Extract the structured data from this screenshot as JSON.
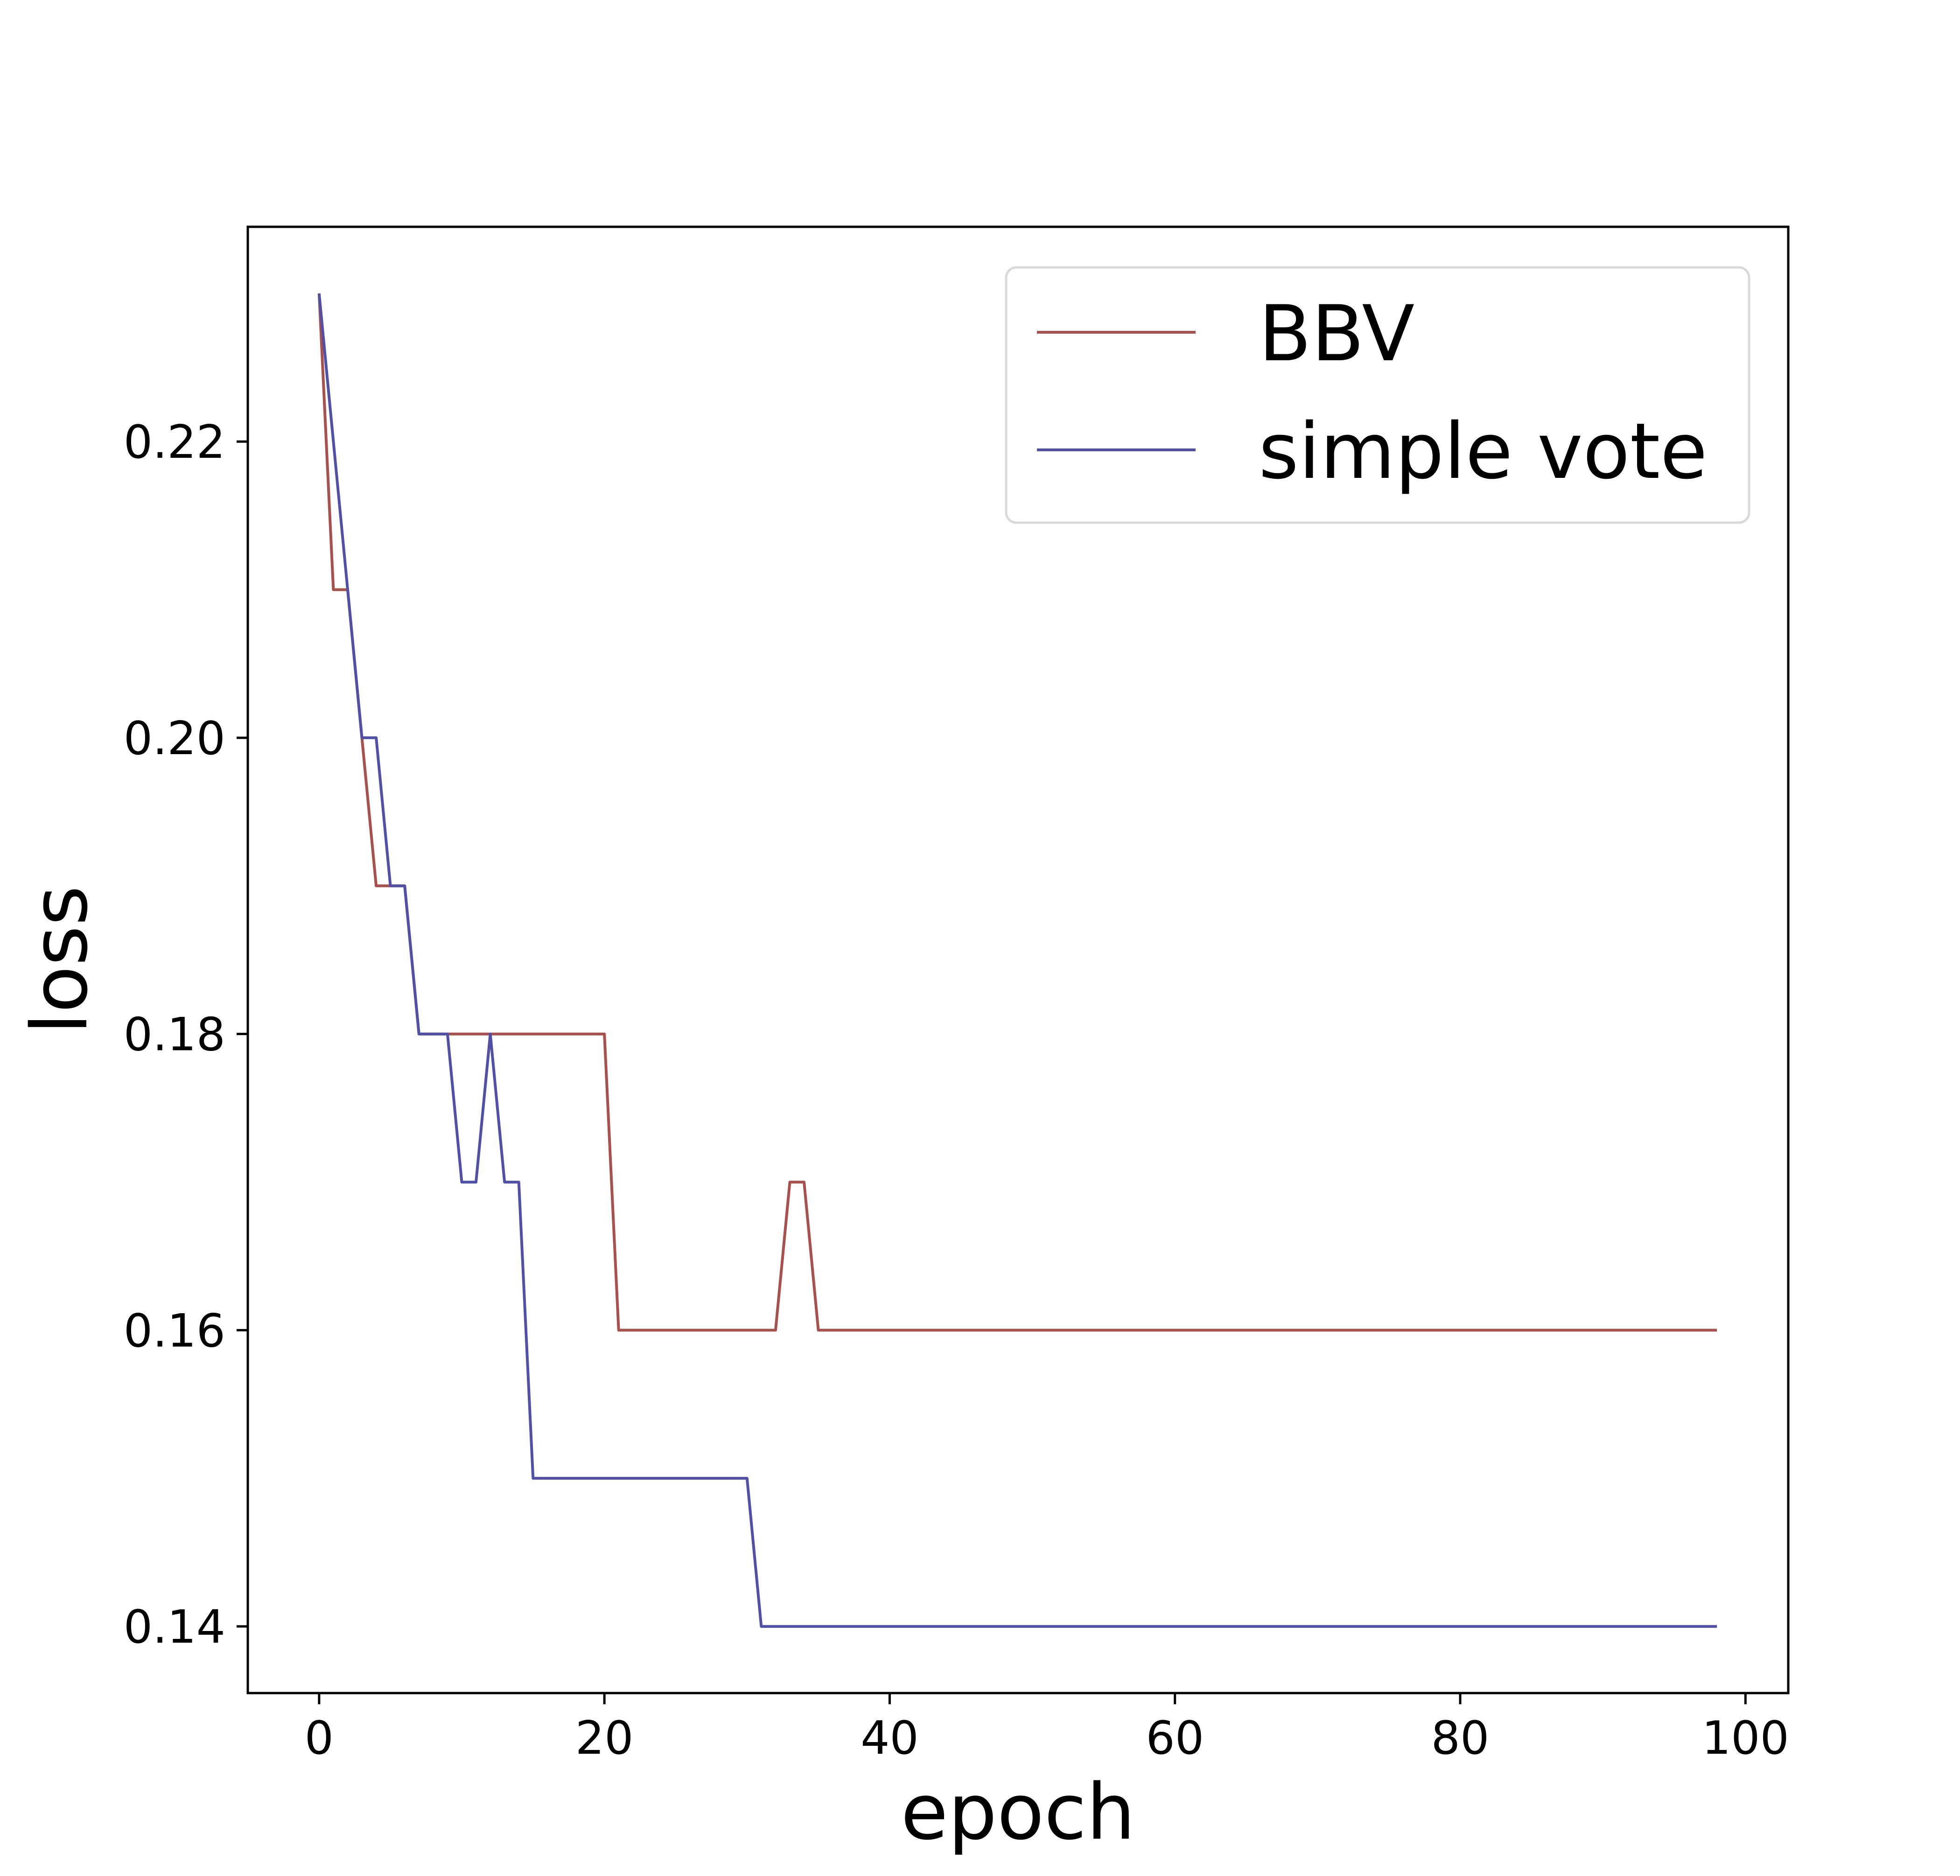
{
  "chart_data": {
    "type": "line",
    "title": "",
    "xlabel": "epoch",
    "ylabel": "loss",
    "xlim": [
      -5,
      103
    ],
    "ylim": [
      0.1355,
      0.2345
    ],
    "xticks": [
      0,
      20,
      40,
      60,
      80,
      100
    ],
    "yticks": [
      0.14,
      0.16,
      0.18,
      0.2,
      0.22
    ],
    "xtick_labels": [
      "0",
      "20",
      "40",
      "60",
      "80",
      "100"
    ],
    "ytick_labels": [
      "0.14",
      "0.16",
      "0.18",
      "0.20",
      "0.22"
    ],
    "grid": false,
    "legend": "top-right",
    "x": [
      0,
      1,
      2,
      3,
      4,
      5,
      6,
      7,
      8,
      9,
      10,
      11,
      12,
      13,
      14,
      15,
      16,
      17,
      18,
      19,
      20,
      21,
      22,
      23,
      24,
      25,
      26,
      27,
      28,
      29,
      30,
      31,
      32,
      33,
      34,
      35,
      36,
      37,
      38,
      39,
      40,
      41,
      42,
      43,
      44,
      45,
      46,
      47,
      48,
      49,
      50,
      51,
      52,
      53,
      54,
      55,
      56,
      57,
      58,
      59,
      60,
      61,
      62,
      63,
      64,
      65,
      66,
      67,
      68,
      69,
      70,
      71,
      72,
      73,
      74,
      75,
      76,
      77,
      78,
      79,
      80,
      81,
      82,
      83,
      84,
      85,
      86,
      87,
      88,
      89,
      90,
      91,
      92,
      93,
      94,
      95,
      96,
      97,
      98
    ],
    "series": [
      {
        "name": "BBV",
        "color": "#a8504c",
        "values": [
          0.23,
          0.21,
          0.21,
          0.2,
          0.19,
          0.19,
          0.19,
          0.18,
          0.18,
          0.18,
          0.18,
          0.18,
          0.18,
          0.18,
          0.18,
          0.18,
          0.18,
          0.18,
          0.18,
          0.18,
          0.18,
          0.16,
          0.16,
          0.16,
          0.16,
          0.16,
          0.16,
          0.16,
          0.16,
          0.16,
          0.16,
          0.16,
          0.16,
          0.17,
          0.17,
          0.16,
          0.16,
          0.16,
          0.16,
          0.16,
          0.16,
          0.16,
          0.16,
          0.16,
          0.16,
          0.16,
          0.16,
          0.16,
          0.16,
          0.16,
          0.16,
          0.16,
          0.16,
          0.16,
          0.16,
          0.16,
          0.16,
          0.16,
          0.16,
          0.16,
          0.16,
          0.16,
          0.16,
          0.16,
          0.16,
          0.16,
          0.16,
          0.16,
          0.16,
          0.16,
          0.16,
          0.16,
          0.16,
          0.16,
          0.16,
          0.16,
          0.16,
          0.16,
          0.16,
          0.16,
          0.16,
          0.16,
          0.16,
          0.16,
          0.16,
          0.16,
          0.16,
          0.16,
          0.16,
          0.16,
          0.16,
          0.16,
          0.16,
          0.16,
          0.16,
          0.16,
          0.16,
          0.16,
          0.16
        ]
      },
      {
        "name": "simple vote",
        "color": "#5050a8",
        "values": [
          0.23,
          0.22,
          0.21,
          0.2,
          0.2,
          0.19,
          0.19,
          0.18,
          0.18,
          0.18,
          0.17,
          0.17,
          0.18,
          0.17,
          0.17,
          0.15,
          0.15,
          0.15,
          0.15,
          0.15,
          0.15,
          0.15,
          0.15,
          0.15,
          0.15,
          0.15,
          0.15,
          0.15,
          0.15,
          0.15,
          0.15,
          0.14,
          0.14,
          0.14,
          0.14,
          0.14,
          0.14,
          0.14,
          0.14,
          0.14,
          0.14,
          0.14,
          0.14,
          0.14,
          0.14,
          0.14,
          0.14,
          0.14,
          0.14,
          0.14,
          0.14,
          0.14,
          0.14,
          0.14,
          0.14,
          0.14,
          0.14,
          0.14,
          0.14,
          0.14,
          0.14,
          0.14,
          0.14,
          0.14,
          0.14,
          0.14,
          0.14,
          0.14,
          0.14,
          0.14,
          0.14,
          0.14,
          0.14,
          0.14,
          0.14,
          0.14,
          0.14,
          0.14,
          0.14,
          0.14,
          0.14,
          0.14,
          0.14,
          0.14,
          0.14,
          0.14,
          0.14,
          0.14,
          0.14,
          0.14,
          0.14,
          0.14,
          0.14,
          0.14,
          0.14,
          0.14,
          0.14,
          0.14,
          0.14
        ]
      }
    ]
  }
}
